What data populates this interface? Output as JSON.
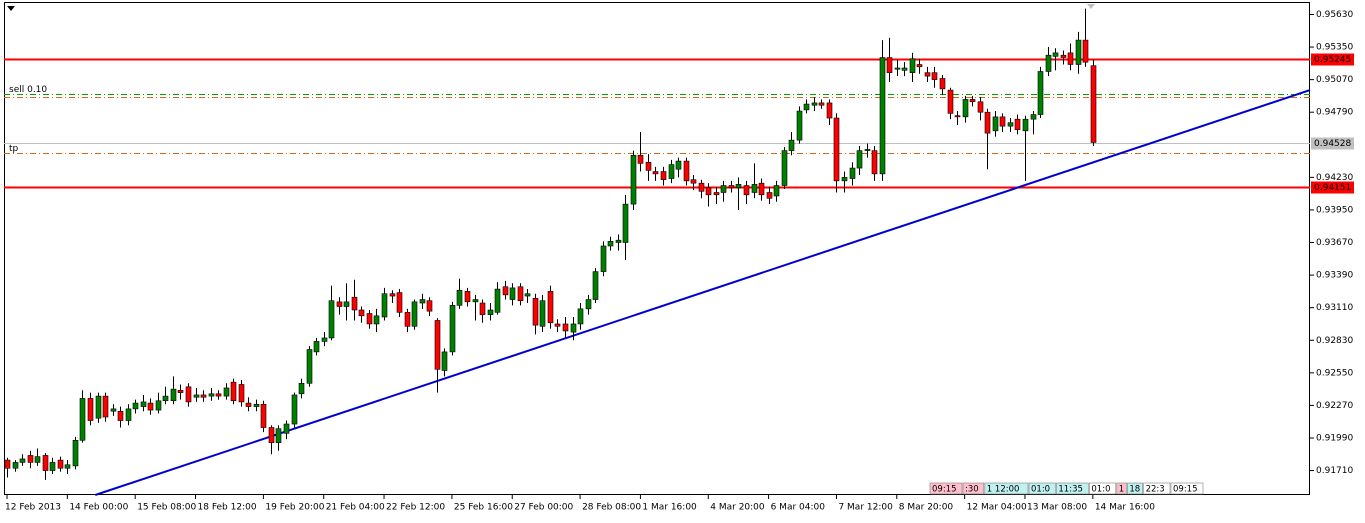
{
  "chart_data": {
    "type": "candlestick",
    "up_color": "#008000",
    "down_color": "#ff0000",
    "edge_color": "#000000",
    "ylim": [
      0.915,
      0.9572
    ],
    "xlim": [
      -0.4,
      172.8
    ],
    "yticks": [
      {
        "value": 0.9563,
        "label": "0.95630"
      },
      {
        "value": 0.9535,
        "label": "0.95350"
      },
      {
        "value": 0.9507,
        "label": "0.95070"
      },
      {
        "value": 0.9479,
        "label": "0.94790"
      },
      {
        "value": 0.9423,
        "label": "0.94230"
      },
      {
        "value": 0.9395,
        "label": "0.93950"
      },
      {
        "value": 0.9367,
        "label": "0.93670"
      },
      {
        "value": 0.9339,
        "label": "0.93390"
      },
      {
        "value": 0.9311,
        "label": "0.93110"
      },
      {
        "value": 0.9283,
        "label": "0.92830"
      },
      {
        "value": 0.9255,
        "label": "0.92550"
      },
      {
        "value": 0.9227,
        "label": "0.92270"
      },
      {
        "value": 0.9199,
        "label": "0.91990"
      },
      {
        "value": 0.9171,
        "label": "0.91710"
      }
    ],
    "xticks": [
      {
        "value": 0,
        "label": "12 Feb 2013"
      },
      {
        "value": 8,
        "label": "14 Feb 00:00"
      },
      {
        "value": 17,
        "label": "15 Feb 08:00"
      },
      {
        "value": 25,
        "label": "18 Feb 12:00"
      },
      {
        "value": 34,
        "label": "19 Feb 20:00"
      },
      {
        "value": 42,
        "label": "21 Feb 04:00"
      },
      {
        "value": 50,
        "label": "22 Feb 12:00"
      },
      {
        "value": 59,
        "label": "25 Feb 16:00"
      },
      {
        "value": 67,
        "label": "27 Feb 00:00"
      },
      {
        "value": 76,
        "label": "28 Feb 08:00"
      },
      {
        "value": 84,
        "label": "1 Mar 16:00"
      },
      {
        "value": 93,
        "label": "4 Mar 20:00"
      },
      {
        "value": 101,
        "label": "6 Mar 04:00"
      },
      {
        "value": 110,
        "label": "7 Mar 12:00"
      },
      {
        "value": 118,
        "label": "8 Mar 20:00"
      },
      {
        "value": 127,
        "label": "12 Mar 04:00"
      },
      {
        "value": 135,
        "label": "13 Mar 08:00"
      },
      {
        "value": 144,
        "label": "14 Mar 16:00"
      }
    ],
    "open": [
      0.918,
      0.9173,
      0.9178,
      0.9184,
      0.9178,
      0.9184,
      0.9171,
      0.918,
      0.9173,
      0.9175,
      0.9197,
      0.9233,
      0.9216,
      0.9235,
      0.9222,
      0.9222,
      0.9214,
      0.9224,
      0.9226,
      0.9229,
      0.9223,
      0.9231,
      0.9231,
      0.924,
      0.9243,
      0.9234,
      0.9236,
      0.9235,
      0.9237,
      0.9235,
      0.9247,
      0.9245,
      0.9229,
      0.9226,
      0.9228,
      0.9208,
      0.9195,
      0.9203,
      0.9211,
      0.9237,
      0.9246,
      0.9273,
      0.9282,
      0.9285,
      0.9316,
      0.9312,
      0.932,
      0.9309,
      0.9306,
      0.9297,
      0.9303,
      0.9323,
      0.9324,
      0.9307,
      0.9295,
      0.9315,
      0.9317,
      0.93,
      0.9257,
      0.9273,
      0.9313,
      0.9325,
      0.9316,
      0.9315,
      0.9305,
      0.9307,
      0.9329,
      0.9318,
      0.9329,
      0.9321,
      0.9319,
      0.9295,
      0.9325,
      0.9297,
      0.9297,
      0.929,
      0.9297,
      0.931,
      0.9318,
      0.9342,
      0.9364,
      0.9367,
      0.9367,
      0.94,
      0.9442,
      0.9436,
      0.9428,
      0.9428,
      0.9422,
      0.943,
      0.9437,
      0.9421,
      0.9418,
      0.9414,
      0.941,
      0.941,
      0.9416,
      0.9414,
      0.9416,
      0.941,
      0.9418,
      0.941,
      0.9407,
      0.9416,
      0.9446,
      0.9455,
      0.9481,
      0.9485,
      0.9487,
      0.9487,
      0.9474,
      0.942,
      0.9422,
      0.9431,
      0.9446,
      0.9446,
      0.9426,
      0.9526,
      0.9516,
      0.9515,
      0.9513,
      0.952,
      0.9513,
      0.9513,
      0.9508,
      0.9498,
      0.9476,
      0.9475,
      0.949,
      0.9488,
      0.9479,
      0.9463,
      0.9475,
      0.9467,
      0.9473,
      0.9463,
      0.9473,
      0.9477,
      0.9514,
      0.9527,
      0.9528,
      0.953,
      0.952,
      0.9541,
      0.9519
    ],
    "high": [
      0.9182,
      0.918,
      0.9185,
      0.9188,
      0.919,
      0.9186,
      0.9182,
      0.9183,
      0.918,
      0.92,
      0.924,
      0.9238,
      0.9238,
      0.9238,
      0.9228,
      0.9226,
      0.9228,
      0.9232,
      0.9236,
      0.9233,
      0.9238,
      0.9243,
      0.9252,
      0.9245,
      0.9246,
      0.9242,
      0.924,
      0.9242,
      0.924,
      0.9246,
      0.925,
      0.9249,
      0.9234,
      0.9232,
      0.9231,
      0.921,
      0.921,
      0.9214,
      0.9238,
      0.925,
      0.9278,
      0.9285,
      0.929,
      0.933,
      0.932,
      0.9332,
      0.9335,
      0.9312,
      0.9309,
      0.931,
      0.9328,
      0.9326,
      0.9327,
      0.931,
      0.9318,
      0.9323,
      0.932,
      0.9302,
      0.9276,
      0.9316,
      0.9336,
      0.9328,
      0.9322,
      0.9318,
      0.9315,
      0.9333,
      0.9334,
      0.9332,
      0.9332,
      0.9327,
      0.9323,
      0.9322,
      0.933,
      0.9301,
      0.9303,
      0.9303,
      0.9315,
      0.9322,
      0.9345,
      0.9368,
      0.9372,
      0.9374,
      0.9408,
      0.9446,
      0.9462,
      0.9443,
      0.9432,
      0.9432,
      0.9438,
      0.944,
      0.944,
      0.9425,
      0.9421,
      0.9418,
      0.9415,
      0.942,
      0.942,
      0.9423,
      0.942,
      0.9435,
      0.9422,
      0.9415,
      0.942,
      0.9449,
      0.9462,
      0.9484,
      0.949,
      0.9492,
      0.949,
      0.949,
      0.9478,
      0.9428,
      0.9436,
      0.945,
      0.9452,
      0.945,
      0.9541,
      0.9543,
      0.9524,
      0.9522,
      0.953,
      0.9525,
      0.9518,
      0.9518,
      0.9511,
      0.95,
      0.948,
      0.9493,
      0.9493,
      0.9492,
      0.9482,
      0.948,
      0.9478,
      0.9474,
      0.9477,
      0.9476,
      0.948,
      0.9518,
      0.9535,
      0.9534,
      0.9532,
      0.9538,
      0.9548,
      0.9568,
      0.9524
    ],
    "low": [
      0.9165,
      0.917,
      0.9175,
      0.9173,
      0.9175,
      0.9163,
      0.9168,
      0.917,
      0.9168,
      0.9172,
      0.9195,
      0.921,
      0.9212,
      0.9213,
      0.9218,
      0.9208,
      0.921,
      0.922,
      0.9222,
      0.9219,
      0.922,
      0.9228,
      0.9228,
      0.9232,
      0.9226,
      0.923,
      0.923,
      0.9231,
      0.9232,
      0.9232,
      0.9228,
      0.9226,
      0.9222,
      0.9222,
      0.9204,
      0.9185,
      0.9188,
      0.9198,
      0.9208,
      0.9233,
      0.9243,
      0.927,
      0.9278,
      0.9283,
      0.9305,
      0.93,
      0.93,
      0.9298,
      0.9293,
      0.929,
      0.93,
      0.9315,
      0.9303,
      0.929,
      0.9292,
      0.931,
      0.9304,
      0.9238,
      0.9252,
      0.927,
      0.931,
      0.9312,
      0.93,
      0.9298,
      0.93,
      0.9305,
      0.9318,
      0.9313,
      0.9313,
      0.9315,
      0.9288,
      0.929,
      0.9293,
      0.929,
      0.9285,
      0.9283,
      0.9292,
      0.9305,
      0.9315,
      0.9338,
      0.936,
      0.936,
      0.9352,
      0.9395,
      0.9428,
      0.942,
      0.942,
      0.9416,
      0.9418,
      0.9423,
      0.9416,
      0.9412,
      0.9405,
      0.9398,
      0.94,
      0.9402,
      0.941,
      0.9395,
      0.94,
      0.9405,
      0.9403,
      0.94,
      0.9402,
      0.9413,
      0.9442,
      0.9452,
      0.9478,
      0.948,
      0.9482,
      0.9468,
      0.941,
      0.941,
      0.9416,
      0.9425,
      0.944,
      0.942,
      0.942,
      0.9505,
      0.951,
      0.951,
      0.9505,
      0.9512,
      0.9505,
      0.95,
      0.9494,
      0.9473,
      0.9468,
      0.947,
      0.9484,
      0.9472,
      0.943,
      0.9458,
      0.9462,
      0.9462,
      0.946,
      0.942,
      0.946,
      0.9474,
      0.951,
      0.9515,
      0.952,
      0.9515,
      0.9512,
      0.9518,
      0.945
    ],
    "close": [
      0.9173,
      0.9178,
      0.9181,
      0.9178,
      0.9183,
      0.9171,
      0.9178,
      0.9173,
      0.9176,
      0.9197,
      0.9233,
      0.9214,
      0.9235,
      0.9217,
      0.9224,
      0.9214,
      0.9224,
      0.9229,
      0.923,
      0.9223,
      0.9231,
      0.9235,
      0.9241,
      0.9238,
      0.923,
      0.9236,
      0.9234,
      0.9237,
      0.9235,
      0.9242,
      0.9231,
      0.923,
      0.9226,
      0.9228,
      0.9208,
      0.9195,
      0.9207,
      0.9211,
      0.9236,
      0.9246,
      0.9275,
      0.9282,
      0.9285,
      0.9317,
      0.9312,
      0.9316,
      0.9309,
      0.9304,
      0.9297,
      0.9304,
      0.9323,
      0.9321,
      0.9307,
      0.9295,
      0.9316,
      0.9318,
      0.9308,
      0.9258,
      0.9273,
      0.9313,
      0.9326,
      0.9316,
      0.9318,
      0.9305,
      0.9309,
      0.9327,
      0.9322,
      0.9328,
      0.9317,
      0.9323,
      0.9296,
      0.9317,
      0.9298,
      0.9295,
      0.9291,
      0.9297,
      0.931,
      0.9318,
      0.9342,
      0.9364,
      0.9368,
      0.9369,
      0.94,
      0.9442,
      0.9435,
      0.9429,
      0.9426,
      0.9421,
      0.9434,
      0.9437,
      0.942,
      0.9418,
      0.9411,
      0.9408,
      0.9408,
      0.9416,
      0.9414,
      0.9417,
      0.9408,
      0.9417,
      0.9408,
      0.9405,
      0.9416,
      0.9446,
      0.9455,
      0.948,
      0.9486,
      0.9487,
      0.9485,
      0.9474,
      0.942,
      0.9423,
      0.9431,
      0.9446,
      0.9447,
      0.9426,
      0.9526,
      0.9513,
      0.9517,
      0.9517,
      0.9525,
      0.9518,
      0.951,
      0.9507,
      0.9499,
      0.9478,
      0.9475,
      0.949,
      0.9488,
      0.9479,
      0.9461,
      0.9475,
      0.9467,
      0.947,
      0.9464,
      0.9473,
      0.9477,
      0.9514,
      0.9528,
      0.953,
      0.9526,
      0.952,
      0.9541,
      0.9522,
      0.9453
    ],
    "hlines": [
      {
        "value": 0.95245,
        "color": "#ff0000",
        "style": "solid",
        "tag": true
      },
      {
        "value": 0.94151,
        "color": "#ff0000",
        "style": "solid",
        "tag": true
      },
      {
        "value": 0.94528,
        "color": "#c0c0c0",
        "style": "thin",
        "tag": true
      },
      {
        "value": 0.9495,
        "color": "#00a000",
        "style": "dash-dot",
        "label": "sell 0.10"
      },
      {
        "value": 0.9492,
        "color": "#d2691e",
        "style": "dash-dot"
      },
      {
        "value": 0.94436,
        "color": "#d2691e",
        "style": "dash-dot",
        "label": "tp"
      }
    ],
    "trendline": {
      "color": "#0000cd",
      "x": [
        11.7,
        172.8
      ],
      "y": [
        0.915,
        0.9498
      ]
    },
    "time_tags": [
      {
        "text": "09:15",
        "color": "#ffc0cb"
      },
      {
        "text": ":30",
        "color": "#ffc0cb"
      },
      {
        "text": "1 12:00",
        "color": "#c0f0f0"
      },
      {
        "text": "01:0",
        "color": "#c0f0f0"
      },
      {
        "text": "11:35",
        "color": "#c0f0f0"
      },
      {
        "text": "01:0",
        "color": "#ffffff"
      },
      {
        "text": "1",
        "color": "#ffc0cb"
      },
      {
        "text": "18",
        "color": "#c0f0f0"
      },
      {
        "text": "22:3",
        "color": "#ffffff"
      },
      {
        "text": "09:15",
        "color": "#ffffff"
      }
    ]
  }
}
